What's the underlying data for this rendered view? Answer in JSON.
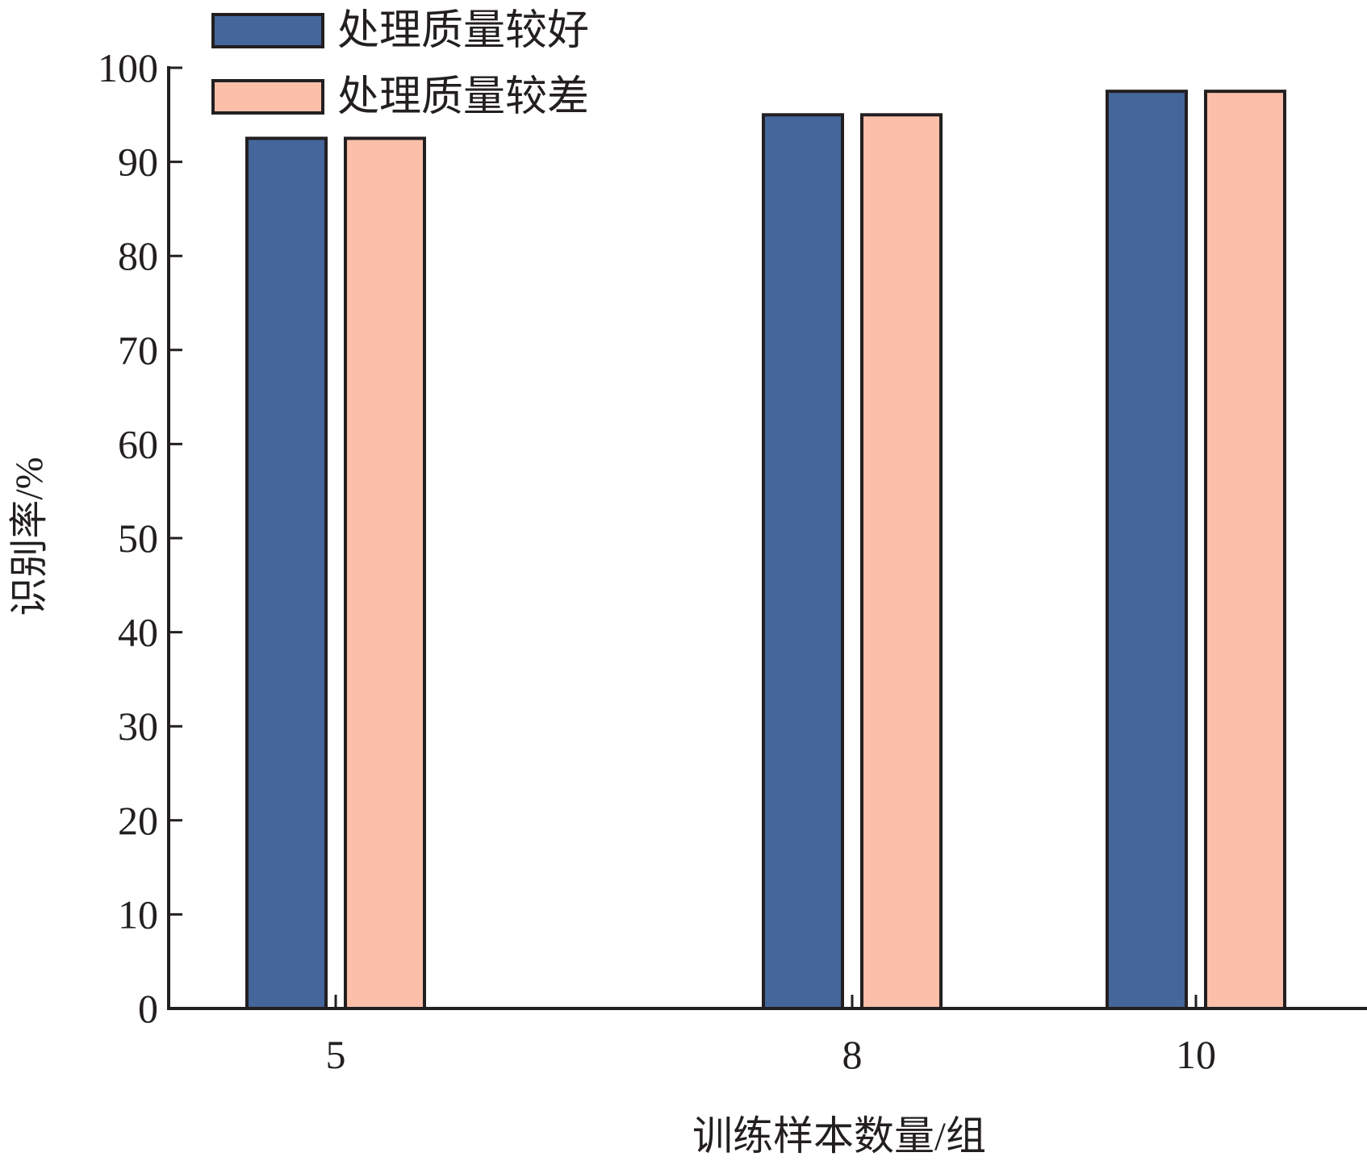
{
  "chart_data": {
    "type": "bar",
    "categories": [
      "5",
      "8",
      "10"
    ],
    "series": [
      {
        "name": "处理质量较好",
        "values": [
          92.5,
          95,
          97.5
        ],
        "color": "#44669a"
      },
      {
        "name": "处理质量较差",
        "values": [
          92.5,
          95,
          97.5
        ],
        "color": "#fbbfaa"
      }
    ],
    "xlabel": "训练样本数量/组",
    "ylabel": "识别率/%",
    "ylim": [
      0,
      100
    ],
    "yticks": [
      "0",
      "10",
      "20",
      "30",
      "40",
      "50",
      "60",
      "70",
      "80",
      "90",
      "100"
    ],
    "grid": false,
    "legend_position": "top-left"
  }
}
